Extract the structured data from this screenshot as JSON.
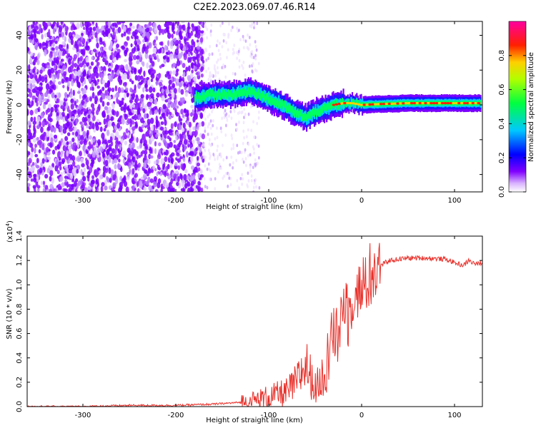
{
  "figure_title": "C2E2.2023.069.07.46.R14",
  "colors": {
    "snr_line": "#e8302a",
    "axis": "#000000",
    "spectrogram_low": "#7a00ff",
    "spectrogram_high": "#ff0000"
  },
  "chart_data": [
    {
      "type": "heatmap",
      "title": "",
      "xlabel": "Height of straight line (km)",
      "ylabel": "Frequency (Hz)",
      "xlim": [
        -360,
        130
      ],
      "ylim": [
        -50,
        48
      ],
      "x_ticks": [
        -300,
        -200,
        -100,
        0,
        100
      ],
      "x_tick_labels": [
        "-300",
        "-200",
        "-100",
        "0",
        "100"
      ],
      "y_ticks": [
        -40,
        -20,
        0,
        20,
        40
      ],
      "y_tick_labels": [
        "-40",
        "-20",
        "0",
        "20",
        "40"
      ],
      "grid": false,
      "noise_region_x": [
        -360,
        -170
      ],
      "signal_trace": {
        "x": [
          -180,
          -160,
          -140,
          -120,
          -110,
          -100,
          -90,
          -80,
          -70,
          -60,
          -50,
          -40,
          -30,
          -20,
          -10,
          0,
          20,
          50,
          80,
          100,
          128
        ],
        "y": [
          4,
          6,
          6,
          8,
          6,
          3,
          1,
          -2,
          -5,
          -7,
          -4,
          -2,
          0,
          1,
          1,
          0,
          0.5,
          1,
          1,
          1,
          1
        ]
      },
      "colorbar": {
        "label": "Normalized spectral amplitude",
        "range": [
          0.0,
          1.0
        ],
        "ticks": [
          0.0,
          0.2,
          0.4,
          0.6,
          0.8
        ],
        "tick_labels": [
          "0.0",
          "0.2",
          "0.4",
          "0.6",
          "0.8"
        ],
        "colormap": "purple-blue-cyan-green-yellow-red-magenta"
      }
    },
    {
      "type": "line",
      "title": "",
      "xlabel": "Height of straight line (km)",
      "ylabel": "SNR (10 * v/v)",
      "y_scale_label": "(x10",
      "y_scale_exponent": "4",
      "y_scale_close": ")",
      "xlim": [
        -360,
        130
      ],
      "ylim": [
        0.0,
        1.4
      ],
      "x_ticks": [
        -300,
        -200,
        -100,
        0,
        100
      ],
      "x_tick_labels": [
        "-300",
        "-200",
        "-100",
        "0",
        "100"
      ],
      "y_ticks": [
        0.0,
        0.2,
        0.4,
        0.6,
        0.8,
        1.0,
        1.2,
        1.4
      ],
      "y_tick_labels": [
        "0.0",
        "0.2",
        "0.4",
        "0.6",
        "0.8",
        "1.0",
        "1.2",
        "1.4"
      ],
      "grid": false,
      "series": [
        {
          "name": "SNR",
          "x": [
            -360,
            -300,
            -250,
            -200,
            -160,
            -140,
            -120,
            -110,
            -100,
            -90,
            -80,
            -70,
            -60,
            -50,
            -45,
            -40,
            -35,
            -30,
            -25,
            -20,
            -15,
            -10,
            -5,
            0,
            5,
            10,
            15,
            20,
            25,
            30,
            40,
            50,
            70,
            90,
            95,
            100,
            105,
            110,
            115,
            120,
            125,
            128
          ],
          "y": [
            0.0,
            0.0,
            0.01,
            0.01,
            0.02,
            0.03,
            0.04,
            0.06,
            0.08,
            0.1,
            0.12,
            0.2,
            0.35,
            0.15,
            0.2,
            0.3,
            0.45,
            0.6,
            0.55,
            0.9,
            0.7,
            0.9,
            0.95,
            0.95,
            1.0,
            1.05,
            1.1,
            1.15,
            1.18,
            1.2,
            1.21,
            1.22,
            1.22,
            1.21,
            1.2,
            1.18,
            1.17,
            1.16,
            1.2,
            1.18,
            1.17,
            1.18
          ]
        }
      ]
    }
  ]
}
